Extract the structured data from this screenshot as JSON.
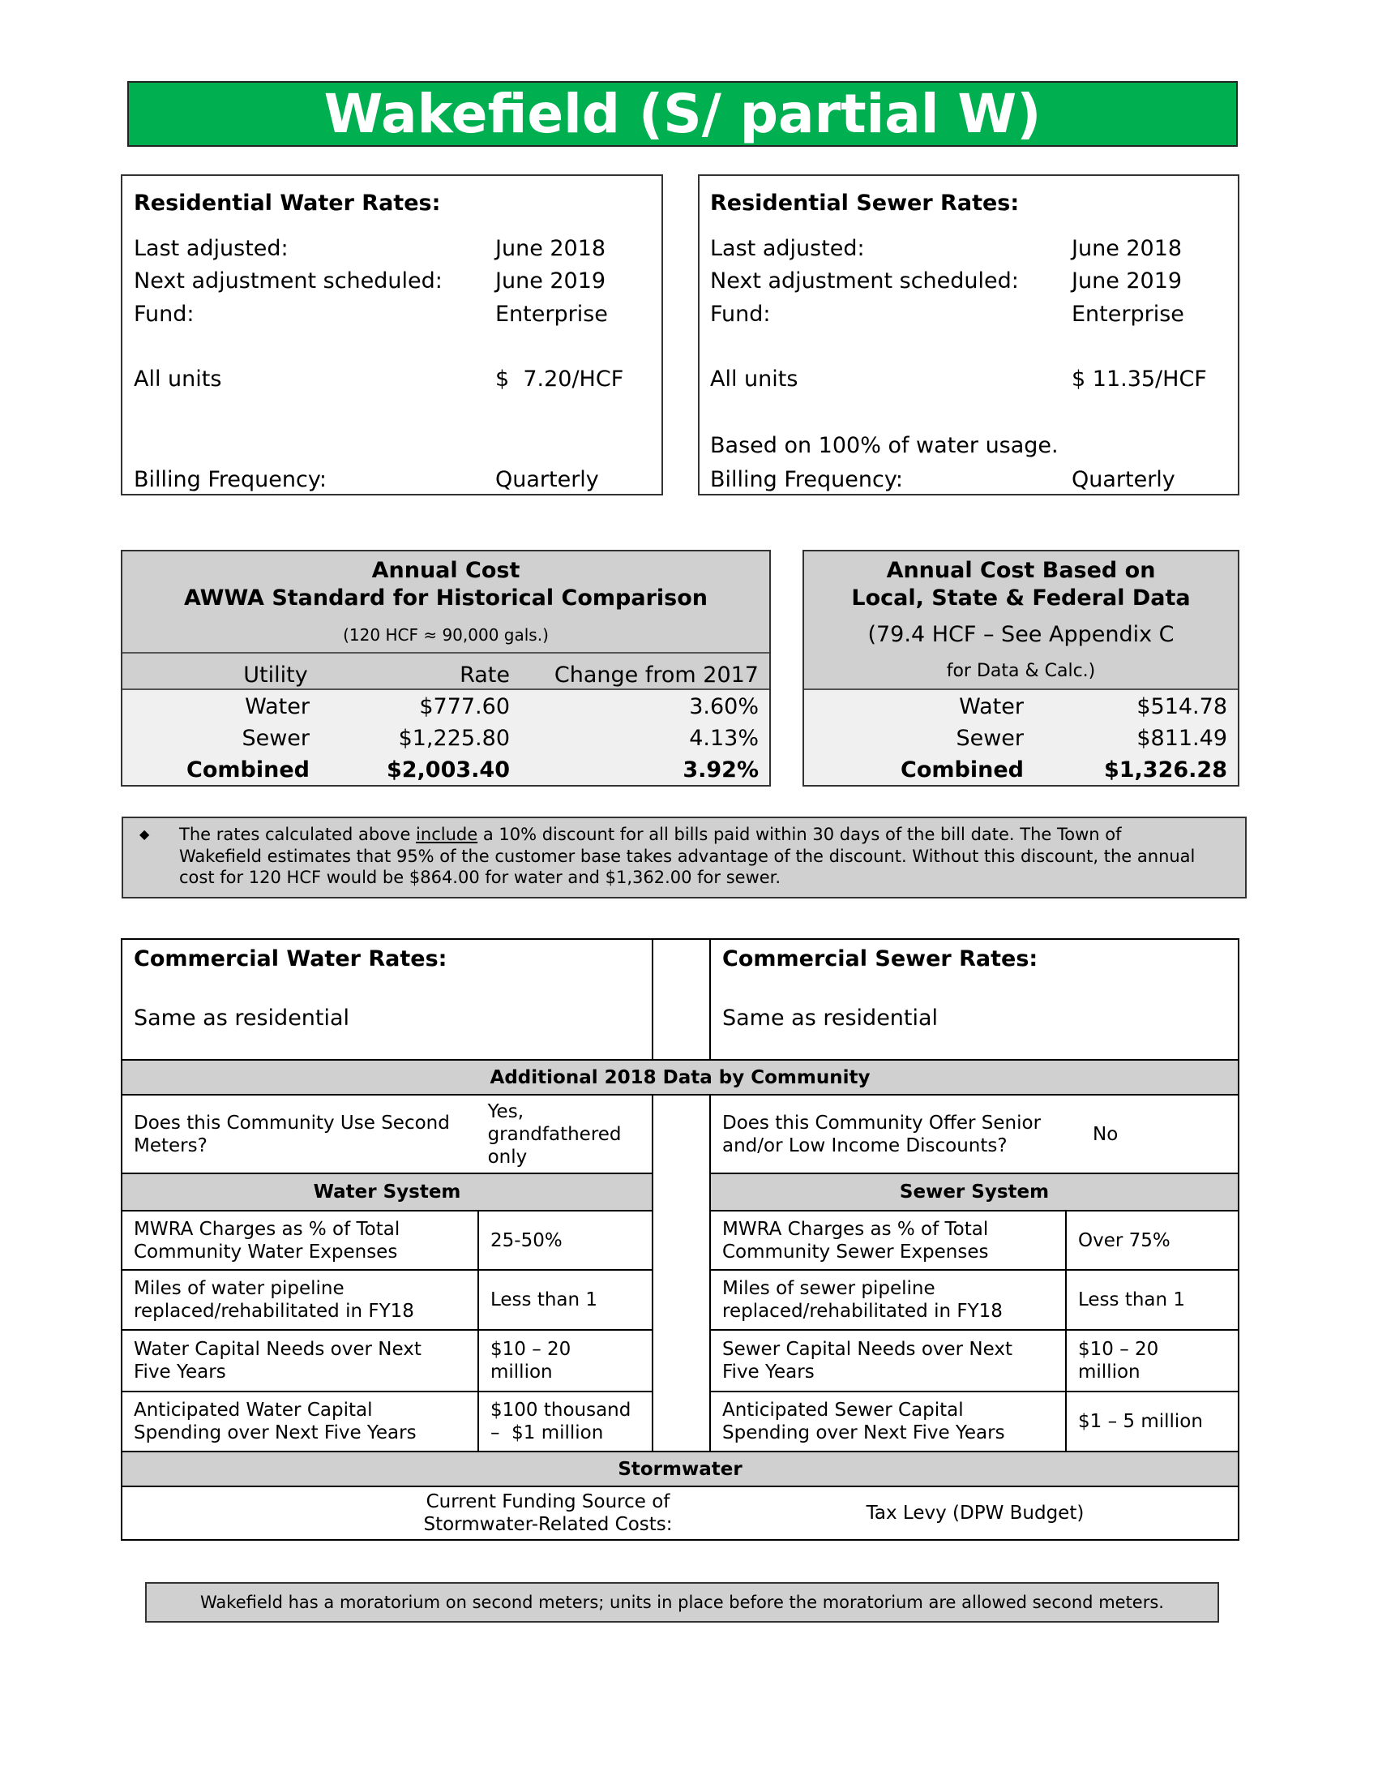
{
  "title": "Wakefield (S/ partial W)",
  "water_rates": {
    "heading": "Residential Water Rates:",
    "rows": [
      [
        "Last adjusted:",
        "June 2018"
      ],
      [
        "Next adjustment scheduled:",
        "June 2019"
      ],
      [
        "Fund:",
        "Enterprise"
      ],
      [
        "All units",
        "$  7.20/HCF"
      ],
      [
        "Billing Frequency:",
        "Quarterly"
      ]
    ]
  },
  "sewer_rates": {
    "heading": "Residential Sewer Rates:",
    "rows": [
      [
        "Last adjusted:",
        "June 2018"
      ],
      [
        "Next adjustment scheduled:",
        "June 2019"
      ],
      [
        "Fund:",
        "Enterprise"
      ],
      [
        "All units",
        "$ 11.35/HCF"
      ],
      [
        "Billing Frequency:",
        "Quarterly"
      ]
    ],
    "note": "Based on 100% of water usage."
  },
  "annual_cost_awwa": {
    "title_lines": [
      "Annual Cost",
      "AWWA Standard for Historical Comparison"
    ],
    "subtitle": "(120 HCF ≈ 90,000 gals.)",
    "columns": [
      "Utility",
      "Rate",
      "Change from 2017"
    ],
    "rows": [
      [
        "Water",
        "$777.60",
        "3.60%"
      ],
      [
        "Sewer",
        "$1,225.80",
        "4.13%"
      ],
      [
        "Combined",
        "$2,003.40",
        "3.92%"
      ]
    ]
  },
  "annual_cost_local": {
    "title_lines": [
      "Annual Cost Based on",
      "Local, State & Federal Data"
    ],
    "subtitle_lines": [
      "(79.4 HCF – See Appendix C",
      "for Data & Calc.)"
    ],
    "rows": [
      [
        "Water",
        "$514.78"
      ],
      [
        "Sewer",
        "$811.49"
      ],
      [
        "Combined",
        "$1,326.28"
      ]
    ]
  },
  "discount_note": {
    "before": "The rates calculated above ",
    "underlined": "include",
    "after": " a 10% discount for all bills paid within 30 days of the bill date. The Town of Wakefield estimates that 95% of the customer base takes advantage of the discount. Without this discount, the annual cost for 120 HCF would be $864.00 for water and $1,362.00 for sewer."
  },
  "commercial": {
    "water_heading": "Commercial Water Rates:",
    "water_text": "Same as residential",
    "sewer_heading": "Commercial Sewer Rates:",
    "sewer_text": "Same as residential"
  },
  "additional": {
    "heading": "Additional 2018 Data by Community",
    "second_meters": {
      "question": "Does this Community Use Second Meters?",
      "answer": "Yes, grandfathered only"
    },
    "senior_discounts": {
      "question": "Does this Community Offer Senior and/or Low Income Discounts?",
      "answer": "No"
    },
    "water_system": {
      "heading": "Water System",
      "rows": [
        [
          "MWRA Charges as % of Total Community Water Expenses",
          "25-50%"
        ],
        [
          "Miles of water pipeline replaced/rehabilitated in FY18",
          "Less than 1"
        ],
        [
          "Water Capital Needs over Next Five Years",
          "$10 – 20 million"
        ],
        [
          "Anticipated Water Capital Spending over Next Five Years",
          "$100 thousand –  $1 million"
        ]
      ]
    },
    "sewer_system": {
      "heading": "Sewer System",
      "rows": [
        [
          "MWRA Charges as % of Total Community Sewer Expenses",
          "Over 75%"
        ],
        [
          "Miles of sewer pipeline replaced/rehabilitated in FY18",
          "Less than 1"
        ],
        [
          "Sewer Capital Needs over Next Five Years",
          "$10 – 20 million"
        ],
        [
          "Anticipated Sewer Capital Spending over Next Five Years",
          "$1 – 5 million"
        ]
      ]
    },
    "stormwater": {
      "heading": "Stormwater",
      "question": "Current Funding Source of Stormwater-Related Costs:",
      "answer": "Tax Levy (DPW Budget)"
    }
  },
  "footer_note": "Wakefield has a moratorium on second meters; units in place before the moratorium are allowed second meters."
}
